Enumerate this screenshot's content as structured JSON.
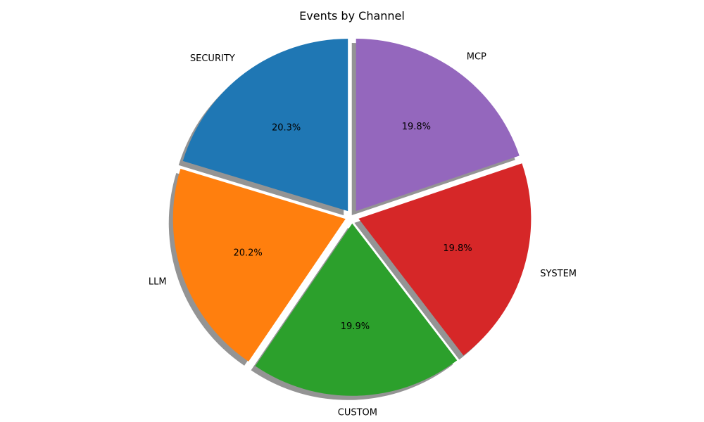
{
  "chart_data": {
    "type": "pie",
    "title": "Events by Channel",
    "categories": [
      "SECURITY",
      "LLM",
      "CUSTOM",
      "SYSTEM",
      "MCP"
    ],
    "values": [
      20.3,
      20.2,
      19.9,
      19.8,
      19.8
    ],
    "value_labels": [
      "20.3%",
      "20.2%",
      "19.9%",
      "19.8%",
      "19.8%"
    ],
    "colors": [
      "#1f77b4",
      "#ff7f0e",
      "#2ca02c",
      "#d62728",
      "#9467bd"
    ],
    "start_angle_deg": 90,
    "direction": "counterclockwise",
    "exploded": true,
    "shadow": true,
    "legend": "none"
  }
}
